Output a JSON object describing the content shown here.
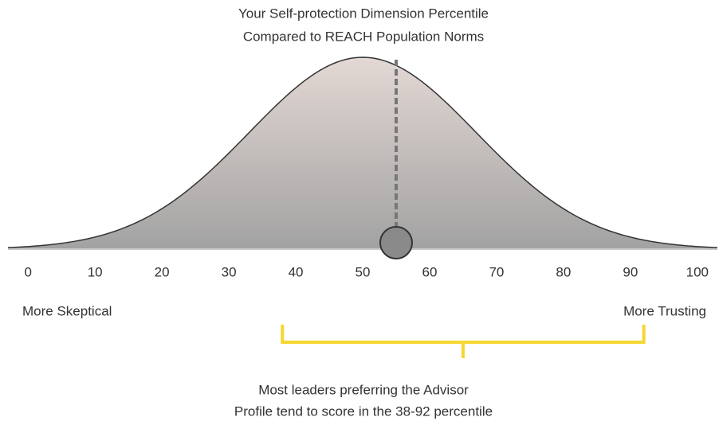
{
  "chart_data": {
    "type": "bell",
    "title": [
      "Your Self-protection Dimension Percentile",
      "Compared to REACH Population Norms"
    ],
    "xlim": [
      -3,
      103
    ],
    "xticks": [
      0,
      10,
      20,
      30,
      40,
      50,
      60,
      70,
      80,
      90,
      100
    ],
    "curve": {
      "mean": 50,
      "sd": 17
    },
    "marker": 55,
    "left_label": "More Skeptical",
    "right_label": "More Trusting",
    "range": [
      38,
      92
    ],
    "range_color": "#f5d732",
    "annotation": [
      "Most leaders preferring the Advisor",
      "Profile tend to score in the 38-92 percentile"
    ]
  }
}
